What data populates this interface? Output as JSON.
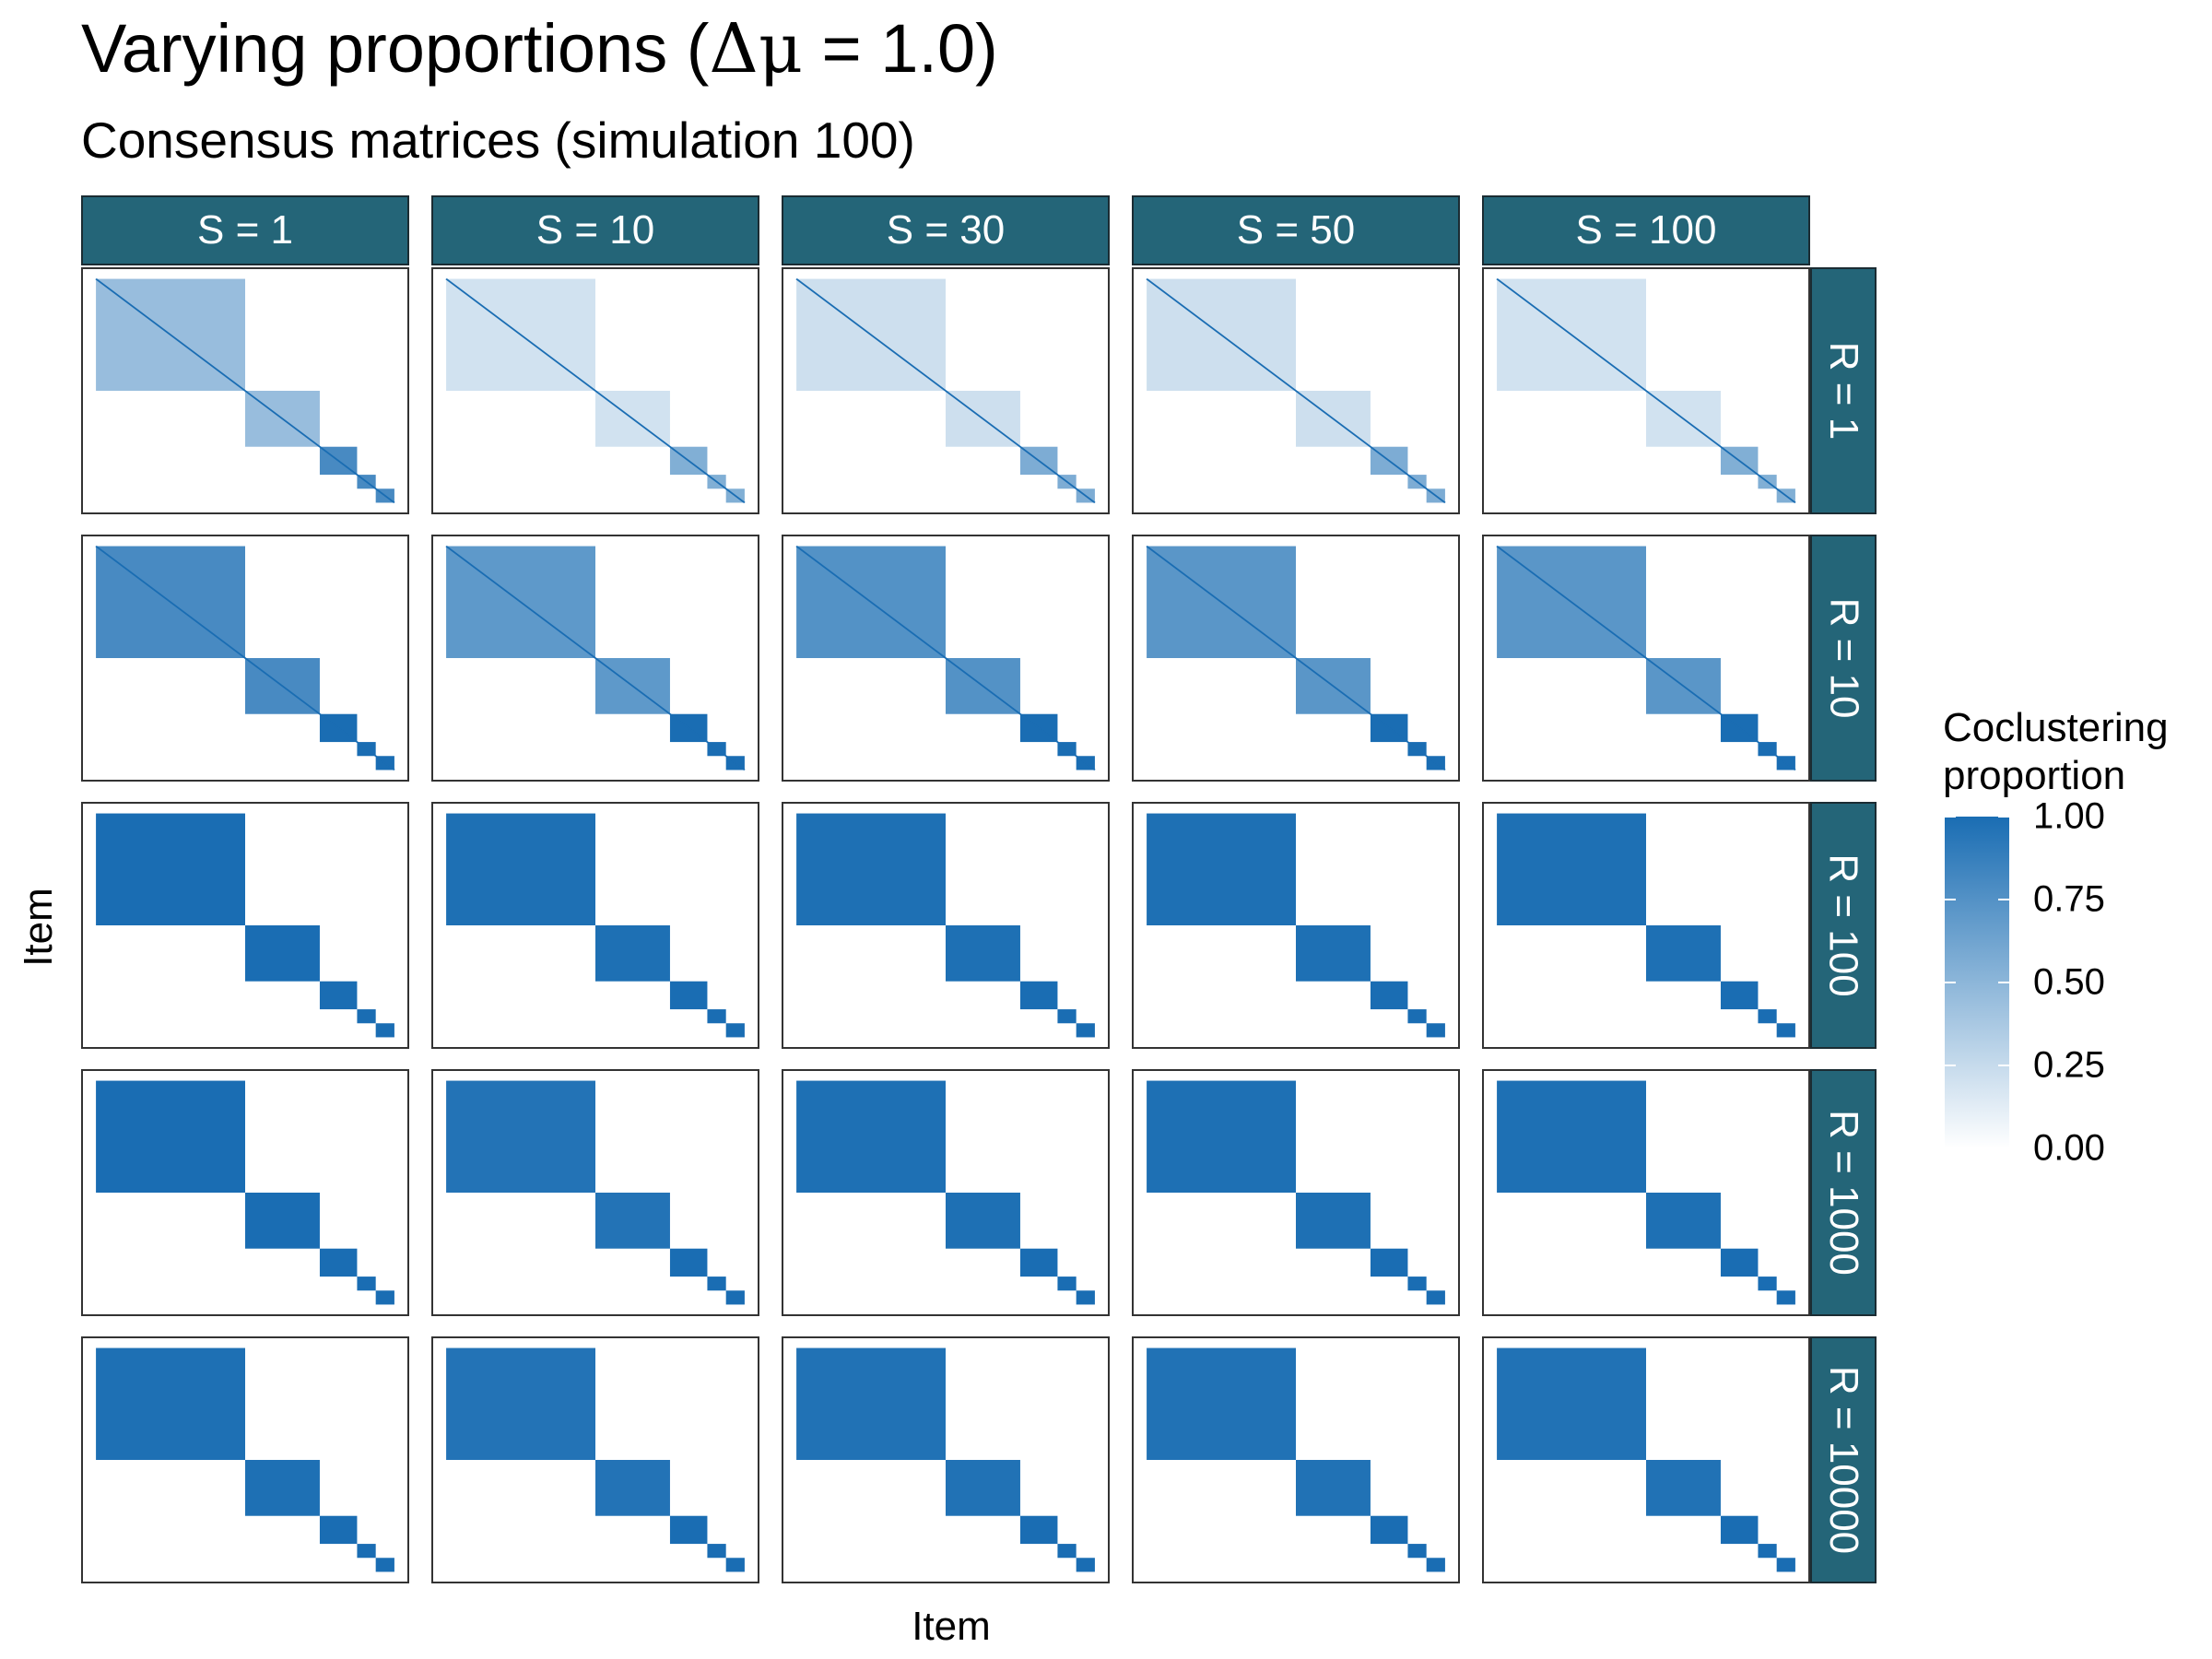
{
  "title": {
    "prefix": "Varying proportions (",
    "symbol": "Δμ",
    "suffix": " = 1.0)"
  },
  "subtitle": "Consensus matrices (simulation 100)",
  "colors": {
    "high": "#1a6db3",
    "low": "#ffffff",
    "strip": "#246578"
  },
  "chart_data": {
    "type": "heatmap",
    "xlabel": "Item",
    "ylabel": "Item",
    "columns": [
      "S = 1",
      "S = 10",
      "S = 30",
      "S = 50",
      "S = 100"
    ],
    "rows": [
      "R = 1",
      "R = 10",
      "R = 100",
      "R = 1000",
      "R = 10000"
    ],
    "cluster_proportions": [
      0.5,
      0.25,
      0.125,
      0.0625,
      0.0625
    ],
    "legend": {
      "title": "Coclustering proportion",
      "min": 0,
      "max": 1,
      "ticks": [
        "1.00",
        "0.75",
        "0.50",
        "0.25",
        "0.00"
      ]
    },
    "block_intensity": [
      [
        0.45,
        0.2,
        0.22,
        0.22,
        0.2
      ],
      [
        0.8,
        0.7,
        0.75,
        0.72,
        0.72
      ],
      [
        1.0,
        0.98,
        0.98,
        0.98,
        0.98
      ],
      [
        1.0,
        0.96,
        0.98,
        0.98,
        0.98
      ],
      [
        0.98,
        0.96,
        0.97,
        0.97,
        0.97
      ]
    ]
  }
}
